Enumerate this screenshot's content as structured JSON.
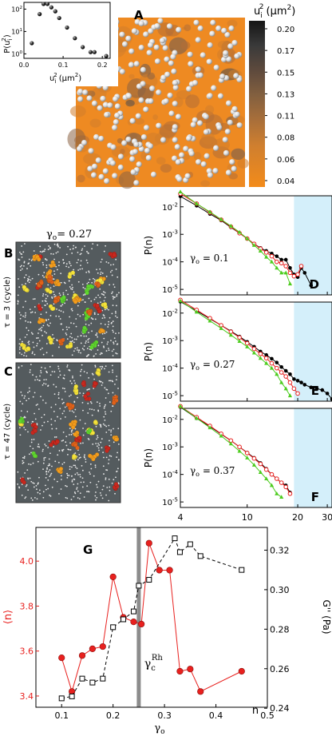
{
  "chart_data": [
    {
      "id": "A",
      "panel_label": "A",
      "type": "heatmap",
      "colorbar": {
        "title_base": "u",
        "title_sub": "i",
        "title_sup": "2",
        "title_unit": "(μm",
        "title_unit_sup": "2",
        "title_unit_end": ")",
        "ticks": [
          "0.20",
          "0.17",
          "0.15",
          "0.13",
          "0.11",
          "0.08",
          "0.06",
          "0.04"
        ],
        "colors": [
          "#1a1a1a",
          "#3a3a3a",
          "#5a4a40",
          "#7a5a42",
          "#9a6a40",
          "#b8763a",
          "#d48530",
          "#f08a1c"
        ],
        "background_color": "#ee8a22"
      }
    },
    {
      "id": "A-inset",
      "type": "scatter",
      "xlabel_base": "u",
      "xlabel_sub": "i",
      "xlabel_sup": "2",
      "xlabel_unit": "(μm",
      "xlabel_unit_sup": "2",
      "xlabel_unit_end": ")",
      "ylabel": "P(u",
      "ylabel_sub": "i",
      "ylabel_sup": "2",
      "ylabel_end": ")",
      "xlim": [
        0.0,
        0.22
      ],
      "ylim_log10": [
        -0.2,
        2.3
      ],
      "yscale": "log",
      "xticks": [
        "0.0",
        "0.1",
        "0.2"
      ],
      "yticks": [
        {
          "base": "10",
          "exp": "0"
        },
        {
          "base": "10",
          "exp": "1"
        },
        {
          "base": "10",
          "exp": "2"
        }
      ],
      "x": [
        0.02,
        0.04,
        0.05,
        0.06,
        0.07,
        0.08,
        0.09,
        0.11,
        0.13,
        0.15,
        0.17,
        0.18,
        0.21
      ],
      "y": [
        3,
        60,
        170,
        170,
        120,
        80,
        40,
        15,
        5,
        2,
        1.2,
        1.2,
        0.8
      ]
    },
    {
      "id": "BC",
      "panel_B_label": "B",
      "panel_C_label": "C",
      "gamma_title": "γ",
      "gamma_title_sub": "o",
      "gamma_title_value": "= 0.27",
      "tau_B": "τ = 3 (cycle)",
      "tau_C": "τ = 47 (cycle)",
      "background_color": "#545b5e",
      "cluster_colors": [
        "#f5e33a",
        "#f39c1c",
        "#e0621a",
        "#c8281e",
        "#5fd62e"
      ]
    },
    {
      "id": "DEF",
      "type": "line",
      "xscale": "log",
      "yscale": "log",
      "xlim": [
        4,
        32
      ],
      "ylim_log10": [
        -5.2,
        -1.6
      ],
      "shaded_from": 19,
      "shade_color": "#d4effa",
      "xlabel": "n",
      "ylabel": "P(n)",
      "xticks": [
        "4",
        "10",
        "20",
        "30"
      ],
      "yticks": [
        {
          "base": "10",
          "exp": "-2"
        },
        {
          "base": "10",
          "exp": "-3"
        },
        {
          "base": "10",
          "exp": "-4"
        },
        {
          "base": "10",
          "exp": "-5"
        }
      ],
      "panels": [
        {
          "label": "D",
          "gamma_prefix": "γ",
          "gamma_sub": "o",
          "gamma_value": "= 0.1",
          "series": [
            {
              "color": "#000000",
              "marker": "circle-filled",
              "x": [
                4,
                5,
                6,
                7,
                8,
                9,
                10,
                11,
                12,
                13,
                14,
                15,
                16,
                17,
                18,
                19,
                20,
                21,
                22,
                24
              ],
              "y": [
                0.024,
                0.011,
                0.0055,
                0.0032,
                0.0018,
                0.0011,
                0.0007,
                0.00045,
                0.00032,
                0.00025,
                0.0002,
                0.00016,
                0.00012,
                0.00012,
                6e-05,
                3.5e-05,
                2.8e-05,
                6e-05,
                4e-05,
                1.4e-05
              ]
            },
            {
              "color": "#e8201e",
              "marker": "circle-open",
              "x": [
                4,
                5,
                6,
                7,
                8,
                9,
                10,
                11,
                12,
                13,
                14,
                15,
                16,
                17,
                18,
                19,
                20,
                21
              ],
              "y": [
                0.03,
                0.013,
                0.0062,
                0.0034,
                0.0019,
                0.0011,
                0.0007,
                0.00045,
                0.0003,
                0.00022,
                0.00016,
                0.0001,
                9e-05,
                7e-05,
                4e-05,
                3e-05,
                3.5e-05,
                7e-05
              ]
            },
            {
              "color": "#4ccc1e",
              "marker": "triangle",
              "x": [
                4,
                5,
                6,
                7,
                8,
                9,
                10,
                11,
                12,
                13,
                14,
                15,
                16,
                17,
                18
              ],
              "y": [
                0.035,
                0.013,
                0.0065,
                0.0035,
                0.002,
                0.0012,
                0.0007,
                0.0004,
                0.00025,
                0.00015,
                0.0001,
                6e-05,
                4e-05,
                4e-05,
                1.6e-05
              ]
            }
          ]
        },
        {
          "label": "E",
          "gamma_prefix": "γ",
          "gamma_sub": "o",
          "gamma_value": "= 0.27",
          "series": [
            {
              "color": "#000000",
              "marker": "circle-filled",
              "x": [
                4,
                5,
                6,
                7,
                8,
                9,
                10,
                11,
                12,
                13,
                14,
                15,
                16,
                17,
                18,
                19,
                20,
                21,
                22,
                24,
                26,
                28,
                30,
                32
              ],
              "y": [
                0.026,
                0.012,
                0.0062,
                0.0036,
                0.0022,
                0.0014,
                0.0009,
                0.0006,
                0.0004,
                0.0003,
                0.00022,
                0.00016,
                0.00011,
                8e-05,
                6e-05,
                4e-05,
                3.5e-05,
                3e-05,
                2.5e-05,
                2e-05,
                1.8e-05,
                1.6e-05,
                1.2e-05,
                7.5e-06
              ]
            },
            {
              "color": "#e8201e",
              "marker": "circle-open",
              "x": [
                4,
                5,
                6,
                7,
                8,
                9,
                10,
                11,
                12,
                13,
                14,
                15,
                16,
                17,
                18,
                19,
                20
              ],
              "y": [
                0.03,
                0.013,
                0.0065,
                0.0036,
                0.0021,
                0.0013,
                0.0008,
                0.0005,
                0.00033,
                0.00023,
                0.00015,
                0.0001,
                7e-05,
                5e-05,
                3e-05,
                1.8e-05,
                1.2e-05
              ]
            },
            {
              "color": "#4ccc1e",
              "marker": "triangle",
              "x": [
                4,
                5,
                6,
                7,
                8,
                9,
                10,
                11,
                12,
                13,
                14,
                15,
                16,
                17,
                18
              ],
              "y": [
                0.028,
                0.011,
                0.0052,
                0.0028,
                0.0016,
                0.00095,
                0.0006,
                0.00036,
                0.00023,
                0.00015,
                0.0001,
                6e-05,
                3e-05,
                1.8e-05,
                1e-05
              ]
            }
          ]
        },
        {
          "label": "F",
          "gamma_prefix": "γ",
          "gamma_sub": "o",
          "gamma_value": "= 0.37",
          "series": [
            {
              "color": "#000000",
              "marker": "circle-filled",
              "x": [
                4,
                5,
                6,
                7,
                8,
                9,
                10,
                11,
                12,
                13,
                14,
                15,
                16,
                17,
                18
              ],
              "y": [
                0.028,
                0.011,
                0.0055,
                0.0029,
                0.0017,
                0.001,
                0.00062,
                0.0004,
                0.00026,
                0.00016,
                0.0001,
                7e-05,
                5e-05,
                4e-05,
                2.2e-05
              ]
            },
            {
              "color": "#e8201e",
              "marker": "circle-open",
              "x": [
                4,
                5,
                6,
                7,
                8,
                9,
                10,
                11,
                12,
                13,
                14,
                15,
                16,
                17,
                18
              ],
              "y": [
                0.03,
                0.012,
                0.0058,
                0.003,
                0.0017,
                0.001,
                0.0006,
                0.00038,
                0.00024,
                0.00015,
                0.0001,
                7e-05,
                5e-05,
                3.5e-05,
                2e-05
              ]
            },
            {
              "color": "#4ccc1e",
              "marker": "triangle",
              "x": [
                4,
                5,
                6,
                7,
                8,
                9,
                10,
                11,
                12,
                13,
                14,
                15,
                16
              ],
              "y": [
                0.03,
                0.011,
                0.005,
                0.0025,
                0.0013,
                0.0007,
                0.0004,
                0.00022,
                0.00012,
                7e-05,
                4e-05,
                2e-05,
                1.5e-05
              ]
            }
          ]
        }
      ]
    },
    {
      "id": "G",
      "panel_label": "G",
      "type": "line",
      "xlabel": "γ",
      "xlabel_sub": "o",
      "xlim": [
        0.05,
        0.5
      ],
      "xticks": [
        "0.1",
        "0.2",
        "0.3",
        "0.4",
        "0.5"
      ],
      "left_axis": {
        "label": "⟨n⟩",
        "color": "#e8201e",
        "ylim": [
          3.35,
          4.15
        ],
        "ticks": [
          "3.4",
          "3.6",
          "3.8",
          "4.0"
        ]
      },
      "right_axis": {
        "label": "G'' (Pa)",
        "ylim": [
          0.2405,
          0.3315
        ],
        "ticks": [
          "0.24",
          "0.26",
          "0.28",
          "0.30",
          "0.32"
        ]
      },
      "gamma_c_value": 0.25,
      "gamma_c_label": "γ",
      "gamma_c_sub": "c",
      "gamma_c_sup": "Rh",
      "series": [
        {
          "axis": "left",
          "color": "#e8201e",
          "marker": "circle-filled",
          "dashed": false,
          "x": [
            0.1,
            0.12,
            0.14,
            0.16,
            0.18,
            0.2,
            0.22,
            0.24,
            0.255,
            0.27,
            0.29,
            0.31,
            0.33,
            0.35,
            0.37,
            0.45
          ],
          "y": [
            3.57,
            3.42,
            3.58,
            3.61,
            3.62,
            3.93,
            3.75,
            3.73,
            3.72,
            4.08,
            3.96,
            3.96,
            3.51,
            3.52,
            3.42,
            3.51
          ]
        },
        {
          "axis": "right",
          "color": "#000000",
          "marker": "square-open",
          "dashed": true,
          "x": [
            0.1,
            0.12,
            0.14,
            0.16,
            0.18,
            0.2,
            0.22,
            0.24,
            0.25,
            0.27,
            0.32,
            0.33,
            0.35,
            0.37,
            0.45
          ],
          "y": [
            0.245,
            0.246,
            0.255,
            0.253,
            0.255,
            0.281,
            0.285,
            0.289,
            0.302,
            0.305,
            0.326,
            0.319,
            0.323,
            0.317,
            0.31
          ]
        }
      ]
    }
  ]
}
